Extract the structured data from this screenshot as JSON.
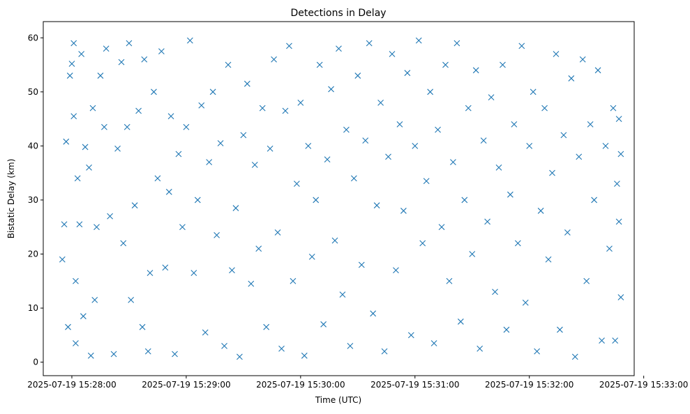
{
  "chart_data": {
    "type": "scatter",
    "title": "Detections in Delay",
    "xlabel": "Time (UTC)",
    "ylabel": "Bistatic Delay (km)",
    "xlim": [
      "2025-07-19 15:27:45",
      "2025-07-19 15:32:55"
    ],
    "ylim": [
      -2.5,
      63
    ],
    "xticks": [
      "2025-07-19 15:28:00",
      "2025-07-19 15:29:00",
      "2025-07-19 15:30:00",
      "2025-07-19 15:31:00",
      "2025-07-19 15:32:00",
      "2025-07-19 15:33:00"
    ],
    "yticks": [
      0,
      10,
      20,
      30,
      40,
      50,
      60
    ],
    "marker": "x",
    "grid": false,
    "colors": {
      "series": "#1f77b4"
    },
    "series": [
      {
        "description": "Detections — x = time (UTC), y = bistatic delay (km)",
        "points": [
          [
            "2025-07-19 15:27:55",
            19
          ],
          [
            "2025-07-19 15:27:56",
            25.5
          ],
          [
            "2025-07-19 15:27:57",
            40.8
          ],
          [
            "2025-07-19 15:27:58",
            6.5
          ],
          [
            "2025-07-19 15:27:59",
            53
          ],
          [
            "2025-07-19 15:28:00",
            55.2
          ],
          [
            "2025-07-19 15:28:01",
            45.5
          ],
          [
            "2025-07-19 15:28:01",
            59
          ],
          [
            "2025-07-19 15:28:02",
            3.5
          ],
          [
            "2025-07-19 15:28:02",
            15
          ],
          [
            "2025-07-19 15:28:03",
            34
          ],
          [
            "2025-07-19 15:28:04",
            25.5
          ],
          [
            "2025-07-19 15:28:05",
            57
          ],
          [
            "2025-07-19 15:28:06",
            8.5
          ],
          [
            "2025-07-19 15:28:07",
            39.8
          ],
          [
            "2025-07-19 15:28:09",
            36
          ],
          [
            "2025-07-19 15:28:10",
            1.2
          ],
          [
            "2025-07-19 15:28:11",
            47
          ],
          [
            "2025-07-19 15:28:12",
            11.5
          ],
          [
            "2025-07-19 15:28:13",
            25
          ],
          [
            "2025-07-19 15:28:15",
            53
          ],
          [
            "2025-07-19 15:28:17",
            43.5
          ],
          [
            "2025-07-19 15:28:18",
            58
          ],
          [
            "2025-07-19 15:28:20",
            27
          ],
          [
            "2025-07-19 15:28:22",
            1.5
          ],
          [
            "2025-07-19 15:28:24",
            39.5
          ],
          [
            "2025-07-19 15:28:26",
            55.5
          ],
          [
            "2025-07-19 15:28:27",
            22
          ],
          [
            "2025-07-19 15:28:29",
            43.5
          ],
          [
            "2025-07-19 15:28:30",
            59
          ],
          [
            "2025-07-19 15:28:31",
            11.5
          ],
          [
            "2025-07-19 15:28:33",
            29
          ],
          [
            "2025-07-19 15:28:35",
            46.5
          ],
          [
            "2025-07-19 15:28:37",
            6.5
          ],
          [
            "2025-07-19 15:28:38",
            56
          ],
          [
            "2025-07-19 15:28:40",
            2
          ],
          [
            "2025-07-19 15:28:41",
            16.5
          ],
          [
            "2025-07-19 15:28:43",
            50
          ],
          [
            "2025-07-19 15:28:45",
            34
          ],
          [
            "2025-07-19 15:28:47",
            57.5
          ],
          [
            "2025-07-19 15:28:49",
            17.5
          ],
          [
            "2025-07-19 15:28:51",
            31.5
          ],
          [
            "2025-07-19 15:28:52",
            45.5
          ],
          [
            "2025-07-19 15:28:54",
            1.5
          ],
          [
            "2025-07-19 15:28:56",
            38.5
          ],
          [
            "2025-07-19 15:28:58",
            25
          ],
          [
            "2025-07-19 15:29:00",
            43.5
          ],
          [
            "2025-07-19 15:29:02",
            59.5
          ],
          [
            "2025-07-19 15:29:04",
            16.5
          ],
          [
            "2025-07-19 15:29:06",
            30
          ],
          [
            "2025-07-19 15:29:08",
            47.5
          ],
          [
            "2025-07-19 15:29:10",
            5.5
          ],
          [
            "2025-07-19 15:29:12",
            37
          ],
          [
            "2025-07-19 15:29:14",
            50
          ],
          [
            "2025-07-19 15:29:16",
            23.5
          ],
          [
            "2025-07-19 15:29:18",
            40.5
          ],
          [
            "2025-07-19 15:29:20",
            3
          ],
          [
            "2025-07-19 15:29:22",
            55
          ],
          [
            "2025-07-19 15:29:24",
            17
          ],
          [
            "2025-07-19 15:29:26",
            28.5
          ],
          [
            "2025-07-19 15:29:28",
            1
          ],
          [
            "2025-07-19 15:29:30",
            42
          ],
          [
            "2025-07-19 15:29:32",
            51.5
          ],
          [
            "2025-07-19 15:29:34",
            14.5
          ],
          [
            "2025-07-19 15:29:36",
            36.5
          ],
          [
            "2025-07-19 15:29:38",
            21
          ],
          [
            "2025-07-19 15:29:40",
            47
          ],
          [
            "2025-07-19 15:29:42",
            6.5
          ],
          [
            "2025-07-19 15:29:44",
            39.5
          ],
          [
            "2025-07-19 15:29:46",
            56
          ],
          [
            "2025-07-19 15:29:48",
            24
          ],
          [
            "2025-07-19 15:29:50",
            2.5
          ],
          [
            "2025-07-19 15:29:52",
            46.5
          ],
          [
            "2025-07-19 15:29:54",
            58.5
          ],
          [
            "2025-07-19 15:29:56",
            15
          ],
          [
            "2025-07-19 15:29:58",
            33
          ],
          [
            "2025-07-19 15:30:00",
            48
          ],
          [
            "2025-07-19 15:30:02",
            1.2
          ],
          [
            "2025-07-19 15:30:04",
            40
          ],
          [
            "2025-07-19 15:30:06",
            19.5
          ],
          [
            "2025-07-19 15:30:08",
            30
          ],
          [
            "2025-07-19 15:30:10",
            55
          ],
          [
            "2025-07-19 15:30:12",
            7
          ],
          [
            "2025-07-19 15:30:14",
            37.5
          ],
          [
            "2025-07-19 15:30:16",
            50.5
          ],
          [
            "2025-07-19 15:30:18",
            22.5
          ],
          [
            "2025-07-19 15:30:20",
            58
          ],
          [
            "2025-07-19 15:30:22",
            12.5
          ],
          [
            "2025-07-19 15:30:24",
            43
          ],
          [
            "2025-07-19 15:30:26",
            3
          ],
          [
            "2025-07-19 15:30:28",
            34
          ],
          [
            "2025-07-19 15:30:30",
            53
          ],
          [
            "2025-07-19 15:30:32",
            18
          ],
          [
            "2025-07-19 15:30:34",
            41
          ],
          [
            "2025-07-19 15:30:36",
            59
          ],
          [
            "2025-07-19 15:30:38",
            9
          ],
          [
            "2025-07-19 15:30:40",
            29
          ],
          [
            "2025-07-19 15:30:42",
            48
          ],
          [
            "2025-07-19 15:30:44",
            2
          ],
          [
            "2025-07-19 15:30:46",
            38
          ],
          [
            "2025-07-19 15:30:48",
            57
          ],
          [
            "2025-07-19 15:30:50",
            17
          ],
          [
            "2025-07-19 15:30:52",
            44
          ],
          [
            "2025-07-19 15:30:54",
            28
          ],
          [
            "2025-07-19 15:30:56",
            53.5
          ],
          [
            "2025-07-19 15:30:58",
            5
          ],
          [
            "2025-07-19 15:31:00",
            40
          ],
          [
            "2025-07-19 15:31:02",
            59.5
          ],
          [
            "2025-07-19 15:31:04",
            22
          ],
          [
            "2025-07-19 15:31:06",
            33.5
          ],
          [
            "2025-07-19 15:31:08",
            50
          ],
          [
            "2025-07-19 15:31:10",
            3.5
          ],
          [
            "2025-07-19 15:31:12",
            43
          ],
          [
            "2025-07-19 15:31:14",
            25
          ],
          [
            "2025-07-19 15:31:16",
            55
          ],
          [
            "2025-07-19 15:31:18",
            15
          ],
          [
            "2025-07-19 15:31:20",
            37
          ],
          [
            "2025-07-19 15:31:22",
            59
          ],
          [
            "2025-07-19 15:31:24",
            7.5
          ],
          [
            "2025-07-19 15:31:26",
            30
          ],
          [
            "2025-07-19 15:31:28",
            47
          ],
          [
            "2025-07-19 15:31:30",
            20
          ],
          [
            "2025-07-19 15:31:32",
            54
          ],
          [
            "2025-07-19 15:31:34",
            2.5
          ],
          [
            "2025-07-19 15:31:36",
            41
          ],
          [
            "2025-07-19 15:31:38",
            26
          ],
          [
            "2025-07-19 15:31:40",
            49
          ],
          [
            "2025-07-19 15:31:42",
            13
          ],
          [
            "2025-07-19 15:31:44",
            36
          ],
          [
            "2025-07-19 15:31:46",
            55
          ],
          [
            "2025-07-19 15:31:48",
            6
          ],
          [
            "2025-07-19 15:31:50",
            31
          ],
          [
            "2025-07-19 15:31:52",
            44
          ],
          [
            "2025-07-19 15:31:54",
            22
          ],
          [
            "2025-07-19 15:31:56",
            58.5
          ],
          [
            "2025-07-19 15:31:58",
            11
          ],
          [
            "2025-07-19 15:32:00",
            40
          ],
          [
            "2025-07-19 15:32:02",
            50
          ],
          [
            "2025-07-19 15:32:04",
            2
          ],
          [
            "2025-07-19 15:32:06",
            28
          ],
          [
            "2025-07-19 15:32:08",
            47
          ],
          [
            "2025-07-19 15:32:10",
            19
          ],
          [
            "2025-07-19 15:32:12",
            35
          ],
          [
            "2025-07-19 15:32:14",
            57
          ],
          [
            "2025-07-19 15:32:16",
            6
          ],
          [
            "2025-07-19 15:32:18",
            42
          ],
          [
            "2025-07-19 15:32:20",
            24
          ],
          [
            "2025-07-19 15:32:22",
            52.5
          ],
          [
            "2025-07-19 15:32:24",
            1
          ],
          [
            "2025-07-19 15:32:26",
            38
          ],
          [
            "2025-07-19 15:32:28",
            56
          ],
          [
            "2025-07-19 15:32:30",
            15
          ],
          [
            "2025-07-19 15:32:32",
            44
          ],
          [
            "2025-07-19 15:32:34",
            30
          ],
          [
            "2025-07-19 15:32:36",
            54
          ],
          [
            "2025-07-19 15:32:38",
            4
          ],
          [
            "2025-07-19 15:32:40",
            40
          ],
          [
            "2025-07-19 15:32:42",
            21
          ],
          [
            "2025-07-19 15:32:44",
            47
          ],
          [
            "2025-07-19 15:32:45",
            4
          ],
          [
            "2025-07-19 15:32:46",
            33
          ],
          [
            "2025-07-19 15:32:47",
            45
          ],
          [
            "2025-07-19 15:32:47",
            26
          ],
          [
            "2025-07-19 15:32:48",
            38.5
          ],
          [
            "2025-07-19 15:32:48",
            12
          ]
        ]
      }
    ]
  }
}
